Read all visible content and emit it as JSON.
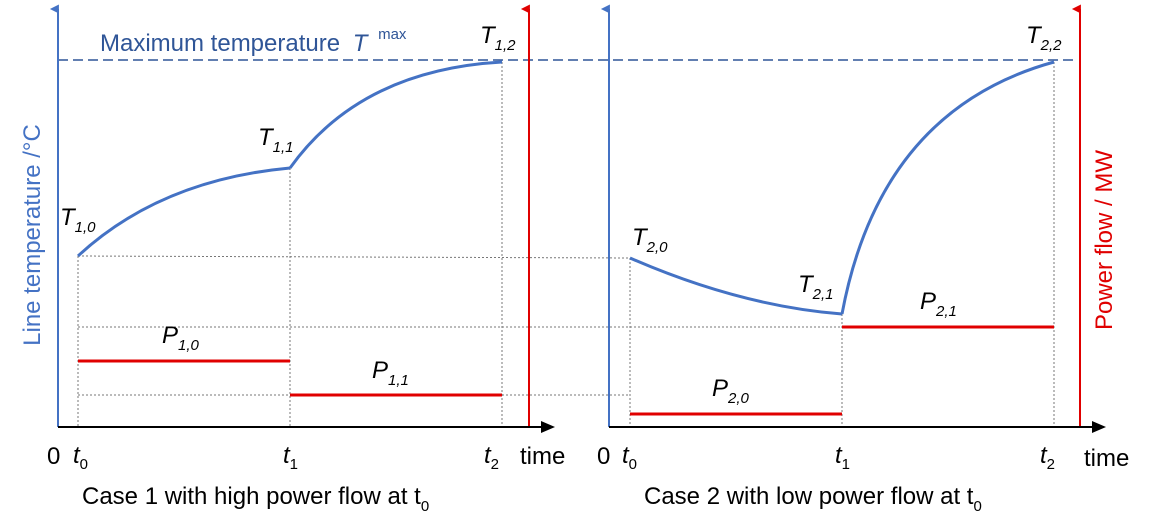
{
  "labels": {
    "max_temperature": "Maximum temperature",
    "T_symbol": "T",
    "T_sup": "max",
    "y_left": "Line temperature /°C",
    "y_right": "Power flow / MW",
    "time": "time",
    "origin": "0",
    "t": "t",
    "caption1_main": "Case 1 with high power flow at t",
    "caption2_main": "Case 2 with low power flow at t",
    "caption_sub": "0"
  },
  "tick_labels": {
    "case1": [
      {
        "main": "t",
        "sub": "0"
      },
      {
        "main": "t",
        "sub": "1"
      },
      {
        "main": "t",
        "sub": "2"
      }
    ],
    "case2": [
      {
        "main": "t",
        "sub": "0"
      },
      {
        "main": "t",
        "sub": "1"
      },
      {
        "main": "t",
        "sub": "2"
      }
    ]
  },
  "point_labels": {
    "case1": {
      "T0": {
        "main": "T",
        "sub": "1,0"
      },
      "T1": {
        "main": "T",
        "sub": "1,1"
      },
      "T2": {
        "main": "T",
        "sub": "1,2"
      },
      "P0": {
        "main": "P",
        "sub": "1,0"
      },
      "P1": {
        "main": "P",
        "sub": "1,1"
      }
    },
    "case2": {
      "T0": {
        "main": "T",
        "sub": "2,0"
      },
      "T1": {
        "main": "T",
        "sub": "2,1"
      },
      "T2": {
        "main": "T",
        "sub": "2,2"
      },
      "P0": {
        "main": "P",
        "sub": "2,0"
      },
      "P1": {
        "main": "P",
        "sub": "2,1"
      }
    }
  },
  "colors": {
    "temperature_curve": "#4472C4",
    "power_flow": "#E00000",
    "max_line": "#2F5597",
    "guide": "#777777"
  }
}
